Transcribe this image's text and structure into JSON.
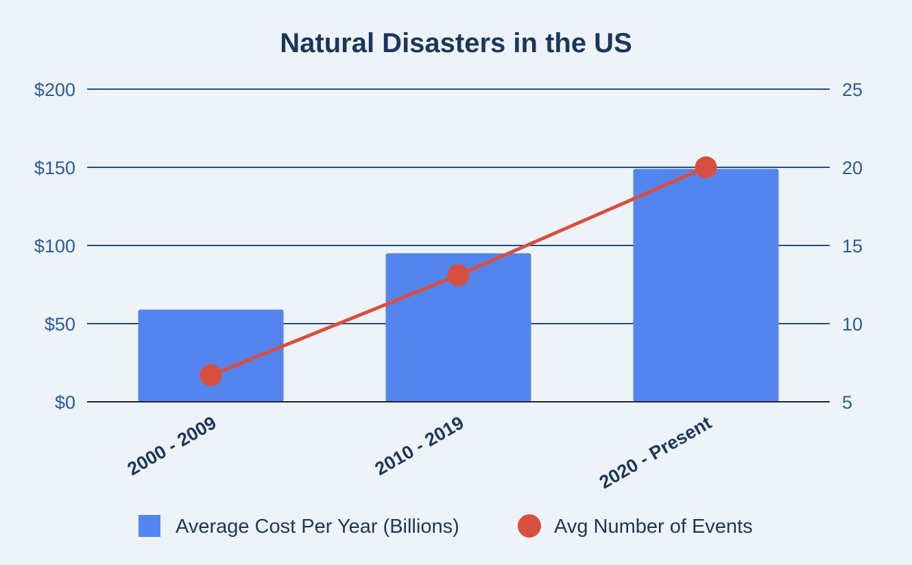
{
  "colors": {
    "background": "#eef3f9",
    "text": "#1b365d",
    "axis_text": "#2a5a9b",
    "gridline": "#1f4e8c",
    "baseline": "#222222",
    "bar": "#5484ed",
    "line": "#d94f3d"
  },
  "chart_data": {
    "type": "bar",
    "title": "Natural Disasters in the US",
    "categories": [
      "2000 - 2009",
      "2010 - 2019",
      "2020 - Present"
    ],
    "series": [
      {
        "name": "Average Cost Per Year (Billions)",
        "type": "bar",
        "axis": "left",
        "values": [
          59,
          95,
          149
        ]
      },
      {
        "name": "Avg Number of Events",
        "type": "line",
        "axis": "right",
        "values": [
          6.7,
          13.1,
          20
        ]
      }
    ],
    "y_left": {
      "ylim": [
        0,
        200
      ],
      "ticks": [
        0,
        50,
        100,
        150,
        200
      ],
      "tick_labels": [
        "$0",
        "$50",
        "$100",
        "$150",
        "$200"
      ]
    },
    "y_right": {
      "ylim": [
        5,
        25
      ],
      "ticks": [
        5,
        10,
        15,
        20,
        25
      ],
      "tick_labels": [
        "5",
        "10",
        "15",
        "20",
        "25"
      ]
    },
    "grid": true,
    "legend": "bottom-center"
  }
}
